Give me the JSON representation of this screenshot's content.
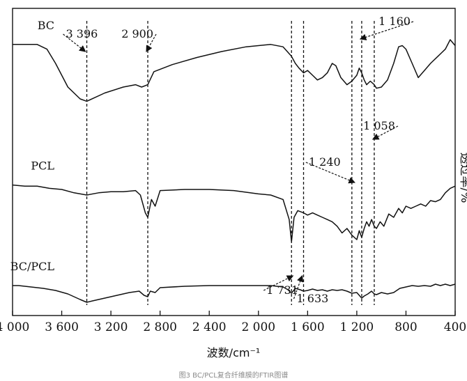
{
  "figure": {
    "caption": "图3 BC/PCL复合纤维膜的FTIR图谱"
  },
  "chart_data": {
    "type": "line",
    "title": "",
    "xlabel": "波数/cm⁻¹",
    "ylabel": "透过率/%",
    "xlim": [
      400,
      4000
    ],
    "x_reversed": true,
    "x_tick_values": [
      4000,
      3600,
      3200,
      2800,
      2400,
      2000,
      1600,
      1200,
      800,
      400
    ],
    "x_tick_labels": [
      "4 000",
      "3 600",
      "3 200",
      "2 800",
      "2 400",
      "2 000",
      "1 600",
      "1 200",
      "800",
      "400"
    ],
    "ylim": [
      0,
      100
    ],
    "y_ticks_shown": false,
    "grid": false,
    "series": [
      {
        "name": "BC",
        "color": "#111111",
        "points": [
          [
            400,
            85
          ],
          [
            440,
            90
          ],
          [
            480,
            82
          ],
          [
            540,
            76
          ],
          [
            600,
            70
          ],
          [
            650,
            64
          ],
          [
            700,
            58
          ],
          [
            750,
            70
          ],
          [
            800,
            82
          ],
          [
            830,
            85
          ],
          [
            860,
            84
          ],
          [
            900,
            70
          ],
          [
            950,
            56
          ],
          [
            1000,
            50
          ],
          [
            1040,
            49
          ],
          [
            1058,
            52
          ],
          [
            1090,
            55
          ],
          [
            1120,
            52
          ],
          [
            1140,
            56
          ],
          [
            1160,
            62
          ],
          [
            1180,
            66
          ],
          [
            1200,
            60
          ],
          [
            1240,
            55
          ],
          [
            1280,
            52
          ],
          [
            1330,
            58
          ],
          [
            1370,
            68
          ],
          [
            1400,
            70
          ],
          [
            1440,
            62
          ],
          [
            1480,
            58
          ],
          [
            1520,
            56
          ],
          [
            1560,
            60
          ],
          [
            1600,
            64
          ],
          [
            1633,
            62
          ],
          [
            1670,
            66
          ],
          [
            1700,
            70
          ],
          [
            1731,
            76
          ],
          [
            1800,
            84
          ],
          [
            1900,
            86
          ],
          [
            2100,
            84
          ],
          [
            2300,
            80
          ],
          [
            2500,
            75
          ],
          [
            2700,
            69
          ],
          [
            2850,
            63
          ],
          [
            2900,
            52
          ],
          [
            2950,
            50
          ],
          [
            3000,
            52
          ],
          [
            3100,
            50
          ],
          [
            3250,
            45
          ],
          [
            3396,
            38
          ],
          [
            3450,
            40
          ],
          [
            3550,
            50
          ],
          [
            3650,
            70
          ],
          [
            3720,
            82
          ],
          [
            3800,
            86
          ],
          [
            3900,
            86
          ],
          [
            4000,
            86
          ]
        ]
      },
      {
        "name": "PCL",
        "color": "#111111",
        "points": [
          [
            400,
            58
          ],
          [
            440,
            56
          ],
          [
            480,
            52
          ],
          [
            520,
            46
          ],
          [
            560,
            44
          ],
          [
            600,
            45
          ],
          [
            640,
            40
          ],
          [
            680,
            42
          ],
          [
            720,
            40
          ],
          [
            760,
            38
          ],
          [
            800,
            40
          ],
          [
            830,
            34
          ],
          [
            860,
            38
          ],
          [
            900,
            30
          ],
          [
            940,
            33
          ],
          [
            980,
            22
          ],
          [
            1010,
            26
          ],
          [
            1040,
            20
          ],
          [
            1058,
            22
          ],
          [
            1080,
            28
          ],
          [
            1100,
            22
          ],
          [
            1120,
            26
          ],
          [
            1140,
            20
          ],
          [
            1160,
            12
          ],
          [
            1180,
            18
          ],
          [
            1200,
            10
          ],
          [
            1240,
            14
          ],
          [
            1280,
            20
          ],
          [
            1320,
            16
          ],
          [
            1360,
            22
          ],
          [
            1400,
            26
          ],
          [
            1440,
            28
          ],
          [
            1480,
            30
          ],
          [
            1520,
            32
          ],
          [
            1560,
            34
          ],
          [
            1600,
            32
          ],
          [
            1633,
            34
          ],
          [
            1680,
            36
          ],
          [
            1710,
            30
          ],
          [
            1731,
            8
          ],
          [
            1750,
            28
          ],
          [
            1800,
            46
          ],
          [
            1900,
            50
          ],
          [
            2000,
            51
          ],
          [
            2200,
            54
          ],
          [
            2400,
            55
          ],
          [
            2600,
            55
          ],
          [
            2800,
            54
          ],
          [
            2840,
            40
          ],
          [
            2870,
            46
          ],
          [
            2900,
            30
          ],
          [
            2920,
            34
          ],
          [
            2960,
            50
          ],
          [
            3000,
            54
          ],
          [
            3100,
            53
          ],
          [
            3200,
            53
          ],
          [
            3300,
            52
          ],
          [
            3396,
            50
          ],
          [
            3500,
            52
          ],
          [
            3600,
            55
          ],
          [
            3700,
            56
          ],
          [
            3800,
            58
          ],
          [
            3900,
            58
          ],
          [
            4000,
            59
          ]
        ]
      },
      {
        "name": "BC/PCL",
        "color": "#111111",
        "points": [
          [
            400,
            32
          ],
          [
            440,
            30
          ],
          [
            480,
            32
          ],
          [
            520,
            30
          ],
          [
            560,
            32
          ],
          [
            600,
            29
          ],
          [
            650,
            30
          ],
          [
            700,
            29
          ],
          [
            750,
            30
          ],
          [
            800,
            28
          ],
          [
            850,
            26
          ],
          [
            900,
            20
          ],
          [
            950,
            18
          ],
          [
            1000,
            20
          ],
          [
            1040,
            17
          ],
          [
            1058,
            18
          ],
          [
            1080,
            22
          ],
          [
            1110,
            18
          ],
          [
            1140,
            15
          ],
          [
            1160,
            12
          ],
          [
            1180,
            16
          ],
          [
            1200,
            20
          ],
          [
            1240,
            19
          ],
          [
            1280,
            22
          ],
          [
            1320,
            24
          ],
          [
            1360,
            23
          ],
          [
            1400,
            24
          ],
          [
            1440,
            22
          ],
          [
            1480,
            24
          ],
          [
            1520,
            23
          ],
          [
            1560,
            25
          ],
          [
            1600,
            23
          ],
          [
            1633,
            22
          ],
          [
            1660,
            24
          ],
          [
            1700,
            26
          ],
          [
            1731,
            19
          ],
          [
            1760,
            24
          ],
          [
            1800,
            28
          ],
          [
            1900,
            30
          ],
          [
            2000,
            30
          ],
          [
            2200,
            30
          ],
          [
            2400,
            30
          ],
          [
            2600,
            29
          ],
          [
            2800,
            27
          ],
          [
            2840,
            20
          ],
          [
            2880,
            22
          ],
          [
            2900,
            14
          ],
          [
            2930,
            16
          ],
          [
            2970,
            22
          ],
          [
            3050,
            20
          ],
          [
            3150,
            16
          ],
          [
            3250,
            12
          ],
          [
            3300,
            10
          ],
          [
            3350,
            8
          ],
          [
            3396,
            6
          ],
          [
            3450,
            10
          ],
          [
            3550,
            18
          ],
          [
            3650,
            23
          ],
          [
            3750,
            26
          ],
          [
            3850,
            28
          ],
          [
            3950,
            30
          ],
          [
            4000,
            30
          ]
        ]
      }
    ],
    "reference_lines": [
      1058,
      1160,
      1240,
      1633,
      1731,
      2900,
      3396
    ],
    "annotations": [
      {
        "text": "1 160",
        "x": 1160,
        "series": "BC"
      },
      {
        "text": "1 058",
        "x": 1058,
        "series": "PCL"
      },
      {
        "text": "1 240",
        "x": 1240,
        "series": "PCL"
      },
      {
        "text": "1 633",
        "x": 1633,
        "series": "BC/PCL"
      },
      {
        "text": "1 731",
        "x": 1731,
        "series": "BC/PCL"
      },
      {
        "text": "2 900",
        "x": 2900,
        "series": "BC"
      },
      {
        "text": "3 396",
        "x": 3396,
        "series": "BC"
      }
    ]
  }
}
